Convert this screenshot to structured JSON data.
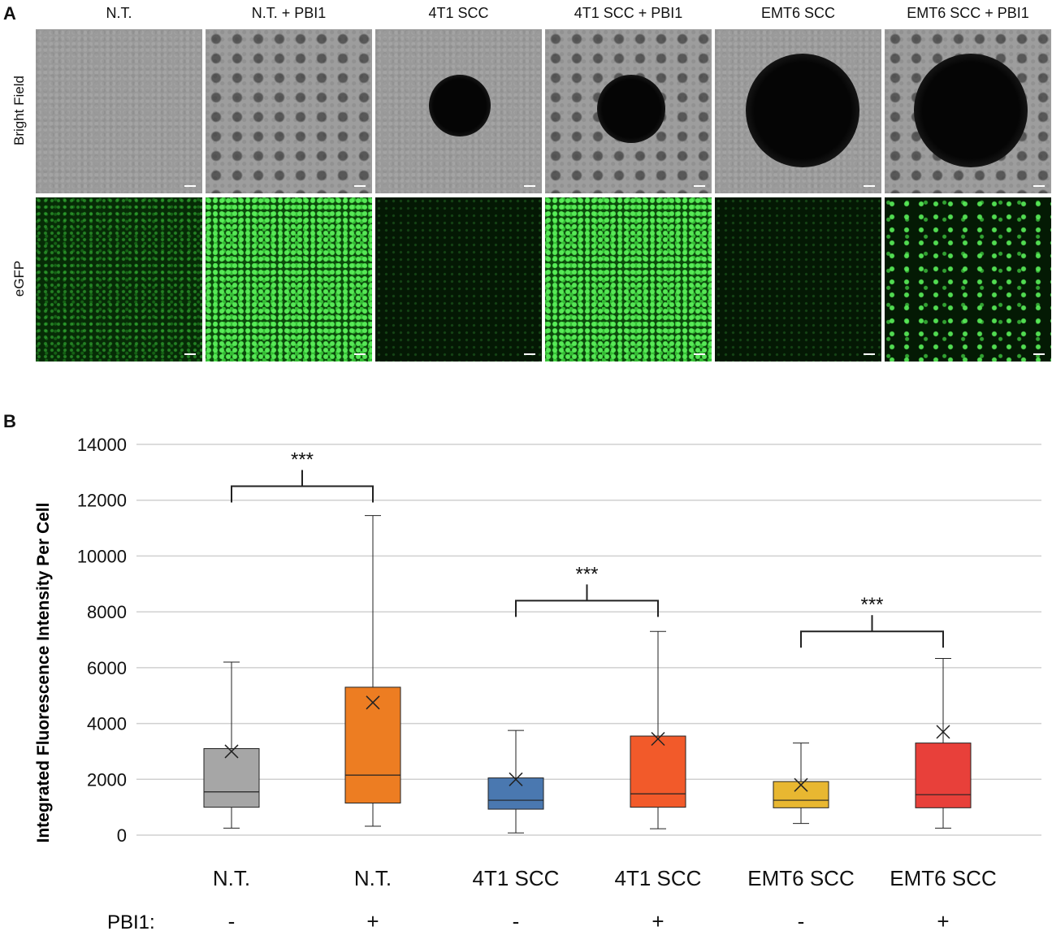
{
  "panel_a": {
    "letter": "A",
    "row_labels": [
      "Bright Field",
      "eGFP"
    ],
    "columns": [
      "N.T.",
      "N.T. + PBI1",
      "4T1 SCC",
      "4T1 SCC + PBI1",
      "EMT6 SCC",
      "EMT6 SCC + PBI1"
    ]
  },
  "panel_b": {
    "letter": "B"
  },
  "chart_data": {
    "type": "box",
    "ylabel": "Integrated Fluorescence Intensity Per Cell",
    "ylim": [
      0,
      14000
    ],
    "yticks": [
      0,
      2000,
      4000,
      6000,
      8000,
      10000,
      12000,
      14000
    ],
    "grid": true,
    "categories": [
      "N.T.",
      "N.T.",
      "4T1 SCC",
      "4T1 SCC",
      "EMT6 SCC",
      "EMT6 SCC"
    ],
    "pbi1_label": "PBI1:",
    "pbi1": [
      "-",
      "+",
      "-",
      "+",
      "-",
      "+"
    ],
    "colors": [
      "#a6a6a6",
      "#ed7d22",
      "#4a78b0",
      "#f25a2a",
      "#e8b731",
      "#e8403a"
    ],
    "boxes": [
      {
        "whisker_low": 250,
        "q1": 1000,
        "median": 1550,
        "q3": 3100,
        "whisker_high": 6200,
        "mean": 3000
      },
      {
        "whisker_low": 320,
        "q1": 1150,
        "median": 2150,
        "q3": 5300,
        "whisker_high": 11450,
        "mean": 4750
      },
      {
        "whisker_low": 80,
        "q1": 930,
        "median": 1250,
        "q3": 2050,
        "whisker_high": 3750,
        "mean": 2000
      },
      {
        "whisker_low": 230,
        "q1": 1000,
        "median": 1480,
        "q3": 3550,
        "whisker_high": 7300,
        "mean": 3450
      },
      {
        "whisker_low": 420,
        "q1": 980,
        "median": 1250,
        "q3": 1920,
        "whisker_high": 3300,
        "mean": 1800
      },
      {
        "whisker_low": 250,
        "q1": 980,
        "median": 1450,
        "q3": 3300,
        "whisker_high": 6330,
        "mean": 3700
      }
    ],
    "significance": [
      {
        "from": 0,
        "to": 1,
        "label": "***",
        "y": 12500
      },
      {
        "from": 2,
        "to": 3,
        "label": "***",
        "y": 8400
      },
      {
        "from": 4,
        "to": 5,
        "label": "***",
        "y": 7300
      }
    ]
  }
}
